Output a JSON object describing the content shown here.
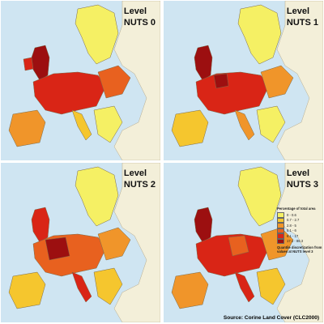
{
  "panels": [
    {
      "title_line1": "Level",
      "title_line2": "NUTS 0"
    },
    {
      "title_line1": "Level",
      "title_line2": "NUTS 1"
    },
    {
      "title_line1": "Level",
      "title_line2": "NUTS 2"
    },
    {
      "title_line1": "Level",
      "title_line2": "NUTS 3"
    }
  ],
  "legend": {
    "title": "Percentage of total area",
    "classes": [
      {
        "label": "0 - 0.6",
        "color": "#f5f064"
      },
      {
        "label": "0.7 - 2.7",
        "color": "#f5c62e"
      },
      {
        "label": "2.8 - 5",
        "color": "#f0952a"
      },
      {
        "label": "5.1 - 6",
        "color": "#e8611f"
      },
      {
        "label": "6.1 - 17",
        "color": "#d92516"
      },
      {
        "label": "17.1 - 88.3",
        "color": "#9c0f10"
      }
    ],
    "note": "Quantile discretization from values at NUTS level 3"
  },
  "source": "Source: Corine Land Cover (CLC2000)",
  "colors": {
    "sea": "#cfe5f2",
    "non_eu_land": "#f3efd9",
    "border": "#7a6a4a"
  }
}
